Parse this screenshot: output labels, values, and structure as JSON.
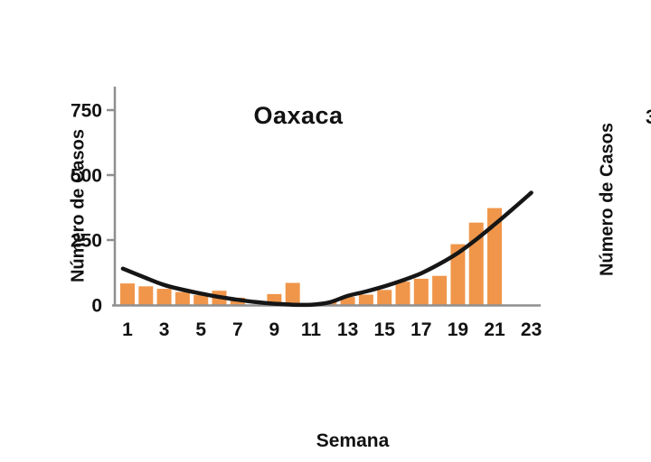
{
  "figure": {
    "title": "Oaxaca",
    "xlabel": "Semana",
    "ylabel_left": "Número de Casos",
    "ylabel_right": "Número de Casos",
    "edge_fragment": "3"
  },
  "chart_data": {
    "type": "bar",
    "title": "Oaxaca",
    "xlabel": "Semana",
    "ylabel": "Número de Casos",
    "categories": [
      1,
      2,
      3,
      4,
      5,
      6,
      7,
      8,
      9,
      10,
      11,
      12,
      13,
      14,
      15,
      16,
      17,
      18,
      19,
      20,
      21,
      22,
      23
    ],
    "x_tick_labels": [
      "1",
      "3",
      "5",
      "7",
      "9",
      "11",
      "13",
      "15",
      "17",
      "19",
      "21",
      "23"
    ],
    "x_tick_weeks": [
      1,
      3,
      5,
      7,
      9,
      11,
      13,
      15,
      17,
      19,
      21,
      23
    ],
    "y_ticks": [
      "0",
      "250",
      "500",
      "750"
    ],
    "y_tick_values": [
      0,
      250,
      500,
      750
    ],
    "ylim": [
      0,
      840
    ],
    "grid": "off",
    "legend": "none",
    "bar_color": "#F0964A",
    "axis_color": "#8f8f8f",
    "curve_color": "#161616",
    "series": [
      {
        "name": "casos-bars",
        "type": "bar",
        "values": [
          83,
          72,
          62,
          50,
          38,
          55,
          28,
          0,
          42,
          85,
          0,
          12,
          31,
          40,
          58,
          90,
          101,
          112,
          234,
          317,
          373,
          0,
          0
        ]
      },
      {
        "name": "trend-curve",
        "type": "line",
        "points": [
          [
            0.75,
            140
          ],
          [
            2,
            104
          ],
          [
            3,
            77
          ],
          [
            4,
            59
          ],
          [
            5,
            44
          ],
          [
            6,
            31
          ],
          [
            7,
            20
          ],
          [
            8,
            11
          ],
          [
            9,
            5
          ],
          [
            10,
            1
          ],
          [
            11,
            1
          ],
          [
            12,
            10
          ],
          [
            13,
            35
          ],
          [
            14,
            52
          ],
          [
            15,
            72
          ],
          [
            16,
            95
          ],
          [
            17,
            122
          ],
          [
            18,
            158
          ],
          [
            19,
            200
          ],
          [
            20,
            252
          ],
          [
            21,
            310
          ],
          [
            22,
            370
          ],
          [
            23,
            432
          ]
        ]
      }
    ]
  }
}
